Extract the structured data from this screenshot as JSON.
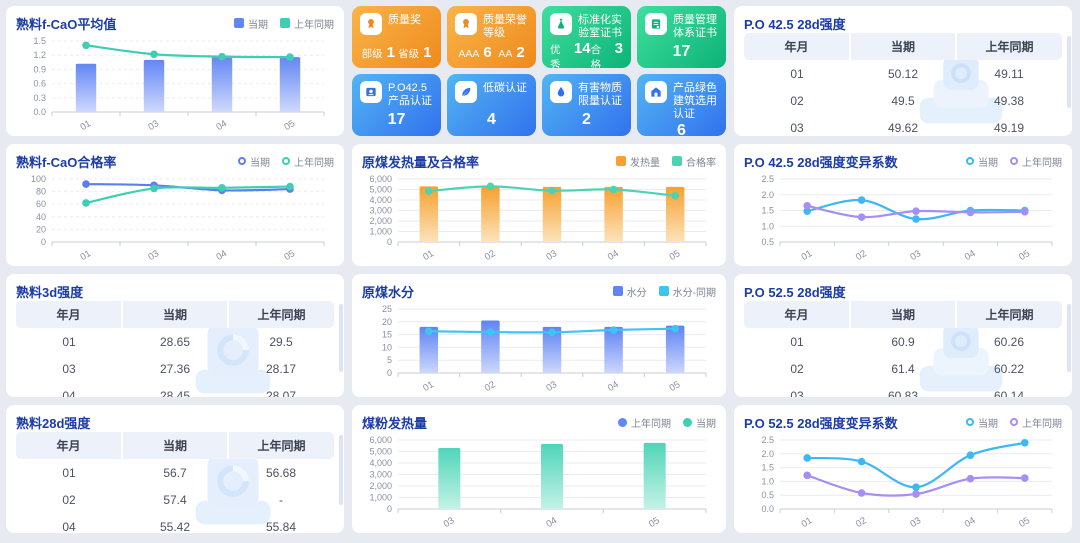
{
  "page": {
    "background": "#e8eaf2",
    "panel_bg": "#ffffff",
    "title_color": "#1c3ca6"
  },
  "panels": {
    "fcao_avg": {
      "title": "熟料f-CaO平均值"
    },
    "fcao_rate": {
      "title": "熟料f-CaO合格率"
    },
    "clinker_3d": {
      "title": "熟料3d强度"
    },
    "clinker_28d": {
      "title": "熟料28d强度"
    },
    "coal_heat": {
      "title": "原煤发热量及合格率"
    },
    "coal_moisture": {
      "title": "原煤水分"
    },
    "coal_powder": {
      "title": "煤粉发热量"
    },
    "po425_28d": {
      "title": "P.O 42.5 28d强度"
    },
    "po425_cv": {
      "title": "P.O 42.5 28d强度变异系数"
    },
    "po525_28d": {
      "title": "P.O 52.5 28d强度"
    },
    "po525_cv": {
      "title": "P.O 52.5 28d强度变异系数"
    }
  },
  "charts": {
    "fcao_avg": {
      "type": "bar+line",
      "categories": [
        "01",
        "03",
        "04",
        "05"
      ],
      "ylim": [
        0,
        1.5
      ],
      "dashed": true,
      "yticks": [
        {
          "v": 0,
          "t": "0.0"
        },
        {
          "v": 0.3,
          "t": "0.3"
        },
        {
          "v": 0.6,
          "t": "0.6"
        },
        {
          "v": 0.9,
          "t": "0.9"
        },
        {
          "v": 1.2,
          "t": "1.2"
        },
        {
          "v": 1.5,
          "t": "1.5"
        }
      ],
      "legend": [
        {
          "label": "当期",
          "marker": "square",
          "color": "#6286f4"
        },
        {
          "label": "上年同期",
          "marker": "square",
          "color": "#3ecfb2"
        }
      ],
      "series": [
        {
          "name": "当期",
          "type": "bar",
          "color": "#6286f4",
          "colorLight": "#cfd9fc",
          "values": [
            1.02,
            1.1,
            1.19,
            1.16
          ]
        },
        {
          "name": "上年同期",
          "type": "line",
          "color": "#3ecfb2",
          "values": [
            1.41,
            1.22,
            1.17,
            1.16
          ]
        }
      ]
    },
    "fcao_rate": {
      "type": "line",
      "categories": [
        "01",
        "03",
        "04",
        "05"
      ],
      "ylim": [
        0,
        100
      ],
      "dashed": true,
      "yticks": [
        {
          "v": 0,
          "t": "0"
        },
        {
          "v": 20,
          "t": "20"
        },
        {
          "v": 40,
          "t": "40"
        },
        {
          "v": 60,
          "t": "60"
        },
        {
          "v": 80,
          "t": "80"
        },
        {
          "v": 100,
          "t": "100"
        }
      ],
      "legend": [
        {
          "label": "当期",
          "marker": "ring",
          "color": "#5c7ef2"
        },
        {
          "label": "上年同期",
          "marker": "ring",
          "color": "#3ecfb2"
        }
      ],
      "series": [
        {
          "name": "当期",
          "type": "line",
          "color": "#5c7ef2",
          "values": [
            92,
            90,
            82,
            84
          ]
        },
        {
          "name": "上年同期",
          "type": "line",
          "color": "#3ecfb2",
          "values": [
            62,
            85,
            86,
            88
          ]
        }
      ]
    },
    "coal_heat": {
      "type": "bar+line",
      "categories": [
        "01",
        "02",
        "03",
        "04",
        "05"
      ],
      "ylim": [
        0,
        6000
      ],
      "dashed": false,
      "yticks": [
        {
          "v": 0,
          "t": "0"
        },
        {
          "v": 1000,
          "t": "1,000"
        },
        {
          "v": 2000,
          "t": "2,000"
        },
        {
          "v": 3000,
          "t": "3,000"
        },
        {
          "v": 4000,
          "t": "4,000"
        },
        {
          "v": 5000,
          "t": "5,000"
        },
        {
          "v": 6000,
          "t": "6,000"
        }
      ],
      "legend": [
        {
          "label": "发热量",
          "marker": "square",
          "color": "#f7a12f"
        },
        {
          "label": "合格率",
          "marker": "square",
          "color": "#4ed2b4"
        }
      ],
      "series": [
        {
          "name": "发热量",
          "type": "bar",
          "color": "#f7a12f",
          "colorLight": "#fbe3bb",
          "values": [
            5300,
            5200,
            5250,
            5250,
            5250
          ]
        },
        {
          "name": "合格率",
          "type": "line",
          "color": "#4ed2b4",
          "values": [
            4850,
            5300,
            4880,
            5000,
            4400
          ]
        }
      ]
    },
    "po425_cv": {
      "type": "line",
      "categories": [
        "01",
        "02",
        "03",
        "04",
        "05"
      ],
      "ylim": [
        0.5,
        2.5
      ],
      "dashed": false,
      "yticks": [
        {
          "v": 0.5,
          "t": "0.5"
        },
        {
          "v": 1,
          "t": "1.0"
        },
        {
          "v": 1.5,
          "t": "1.5"
        },
        {
          "v": 2,
          "t": "2.0"
        },
        {
          "v": 2.5,
          "t": "2.5"
        }
      ],
      "legend": [
        {
          "label": "当期",
          "marker": "ring",
          "color": "#3db8f5"
        },
        {
          "label": "上年同期",
          "marker": "ring",
          "color": "#a78ef5"
        }
      ],
      "series": [
        {
          "name": "当期",
          "type": "line",
          "color": "#3db8f5",
          "values": [
            1.48,
            1.83,
            1.23,
            1.5,
            1.5
          ]
        },
        {
          "name": "上年同期",
          "type": "line",
          "color": "#a78ef5",
          "values": [
            1.65,
            1.29,
            1.48,
            1.44,
            1.46
          ]
        }
      ]
    },
    "coal_moisture": {
      "type": "bar+line",
      "categories": [
        "01",
        "02",
        "03",
        "04",
        "05"
      ],
      "ylim": [
        0,
        25
      ],
      "dashed": false,
      "yticks": [
        {
          "v": 0,
          "t": "0"
        },
        {
          "v": 5,
          "t": "5"
        },
        {
          "v": 10,
          "t": "10"
        },
        {
          "v": 15,
          "t": "15"
        },
        {
          "v": 20,
          "t": "20"
        },
        {
          "v": 25,
          "t": "25"
        }
      ],
      "legend": [
        {
          "label": "水分",
          "marker": "square",
          "color": "#5f84f3"
        },
        {
          "label": "水分-同期",
          "marker": "square",
          "color": "#3ec4f0"
        }
      ],
      "series": [
        {
          "name": "水分",
          "type": "bar",
          "color": "#5f84f3",
          "colorLight": "#ccd7fb",
          "values": [
            18,
            20.5,
            18,
            18,
            18.5
          ]
        },
        {
          "name": "水分-同期",
          "type": "line",
          "color": "#3ec4f0",
          "values": [
            16.3,
            16,
            15.9,
            16.8,
            17.3
          ]
        }
      ]
    },
    "coal_powder": {
      "type": "bar",
      "categories": [
        "03",
        "04",
        "05"
      ],
      "ylim": [
        0,
        6000
      ],
      "dashed": false,
      "yticks": [
        {
          "v": 0,
          "t": "0"
        },
        {
          "v": 1000,
          "t": "1,000"
        },
        {
          "v": 2000,
          "t": "2,000"
        },
        {
          "v": 3000,
          "t": "3,000"
        },
        {
          "v": 4000,
          "t": "4,000"
        },
        {
          "v": 5000,
          "t": "5,000"
        },
        {
          "v": 6000,
          "t": "6,000"
        }
      ],
      "legend": [
        {
          "label": "上年同期",
          "marker": "dot",
          "color": "#6286f4"
        },
        {
          "label": "当期",
          "marker": "dot",
          "color": "#41d0b0"
        }
      ],
      "series": [
        {
          "name": "上年同期",
          "type": "bar",
          "color": "#6286f4",
          "colorLight": "#cfd9fc",
          "values": []
        },
        {
          "name": "当期",
          "type": "bar",
          "color": "#4fd5b8",
          "colorLight": "#c4f2e6",
          "values": [
            5300,
            5650,
            5750
          ]
        }
      ]
    },
    "po525_cv": {
      "type": "line",
      "categories": [
        "01",
        "02",
        "03",
        "04",
        "05"
      ],
      "ylim": [
        0,
        2.5
      ],
      "dashed": false,
      "yticks": [
        {
          "v": 0,
          "t": "0.0"
        },
        {
          "v": 0.5,
          "t": "0.5"
        },
        {
          "v": 1,
          "t": "1.0"
        },
        {
          "v": 1.5,
          "t": "1.5"
        },
        {
          "v": 2,
          "t": "2.0"
        },
        {
          "v": 2.5,
          "t": "2.5"
        }
      ],
      "legend": [
        {
          "label": "当期",
          "marker": "ring",
          "color": "#3db8f5"
        },
        {
          "label": "上年同期",
          "marker": "ring",
          "color": "#a78ef5"
        }
      ],
      "series": [
        {
          "name": "当期",
          "type": "line",
          "color": "#3db8f5",
          "values": [
            1.85,
            1.72,
            0.79,
            1.95,
            2.4
          ]
        },
        {
          "name": "上年同期",
          "type": "line",
          "color": "#a78ef5",
          "values": [
            1.22,
            0.58,
            0.54,
            1.1,
            1.12
          ]
        }
      ]
    }
  },
  "tables": {
    "po425_28d": {
      "headers": [
        "年月",
        "当期",
        "上年同期"
      ],
      "rows": [
        [
          "01",
          "50.12",
          "49.11"
        ],
        [
          "02",
          "49.5",
          "49.38"
        ],
        [
          "03",
          "49.62",
          "49.19"
        ]
      ]
    },
    "clinker_3d": {
      "headers": [
        "年月",
        "当期",
        "上年同期"
      ],
      "rows": [
        [
          "01",
          "28.65",
          "29.5"
        ],
        [
          "03",
          "27.36",
          "28.17"
        ],
        [
          "04",
          "28.45",
          "28.07"
        ]
      ]
    },
    "po525_28d": {
      "headers": [
        "年月",
        "当期",
        "上年同期"
      ],
      "rows": [
        [
          "01",
          "60.9",
          "60.26"
        ],
        [
          "02",
          "61.4",
          "60.22"
        ],
        [
          "03",
          "60.83",
          "60.14"
        ]
      ]
    },
    "clinker_28d": {
      "headers": [
        "年月",
        "当期",
        "上年同期"
      ],
      "rows": [
        [
          "01",
          "56.7",
          "56.68"
        ],
        [
          "02",
          "57.4",
          "-"
        ],
        [
          "04",
          "55.42",
          "55.84"
        ]
      ]
    }
  },
  "badges": [
    {
      "title": "质量奖",
      "icon": "medal-icon",
      "theme": "orange",
      "stats": [
        {
          "label": "部级",
          "value": "1"
        },
        {
          "label": "省级",
          "value": "1"
        }
      ]
    },
    {
      "title": "质量荣誉等级",
      "icon": "medal-icon",
      "theme": "orange",
      "stats": [
        {
          "label": "AAA",
          "value": "6"
        },
        {
          "label": "AA",
          "value": "2"
        }
      ]
    },
    {
      "title": "标准化实验室证书",
      "icon": "flask-icon",
      "theme": "green",
      "stats": [
        {
          "label": "优秀",
          "value": "14"
        },
        {
          "label": "合格",
          "value": "3"
        }
      ]
    },
    {
      "title": "质量管理体系证书",
      "icon": "certificate-icon",
      "theme": "green",
      "stats": [
        {
          "label": "",
          "value": "17"
        }
      ]
    },
    {
      "title": "P.O42.5 产品认证",
      "icon": "product-cert-icon",
      "theme": "blue",
      "stats": [
        {
          "label": "",
          "value": "17"
        }
      ]
    },
    {
      "title": "低碳认证",
      "icon": "leaf-icon",
      "theme": "blue",
      "stats": [
        {
          "label": "",
          "value": "4"
        }
      ]
    },
    {
      "title": "有害物质限量认证",
      "icon": "droplet-icon",
      "theme": "blue",
      "stats": [
        {
          "label": "",
          "value": "2"
        }
      ]
    },
    {
      "title": "产品绿色建筑选用认证",
      "icon": "building-icon",
      "theme": "blue",
      "stats": [
        {
          "label": "",
          "value": "6"
        }
      ]
    }
  ]
}
